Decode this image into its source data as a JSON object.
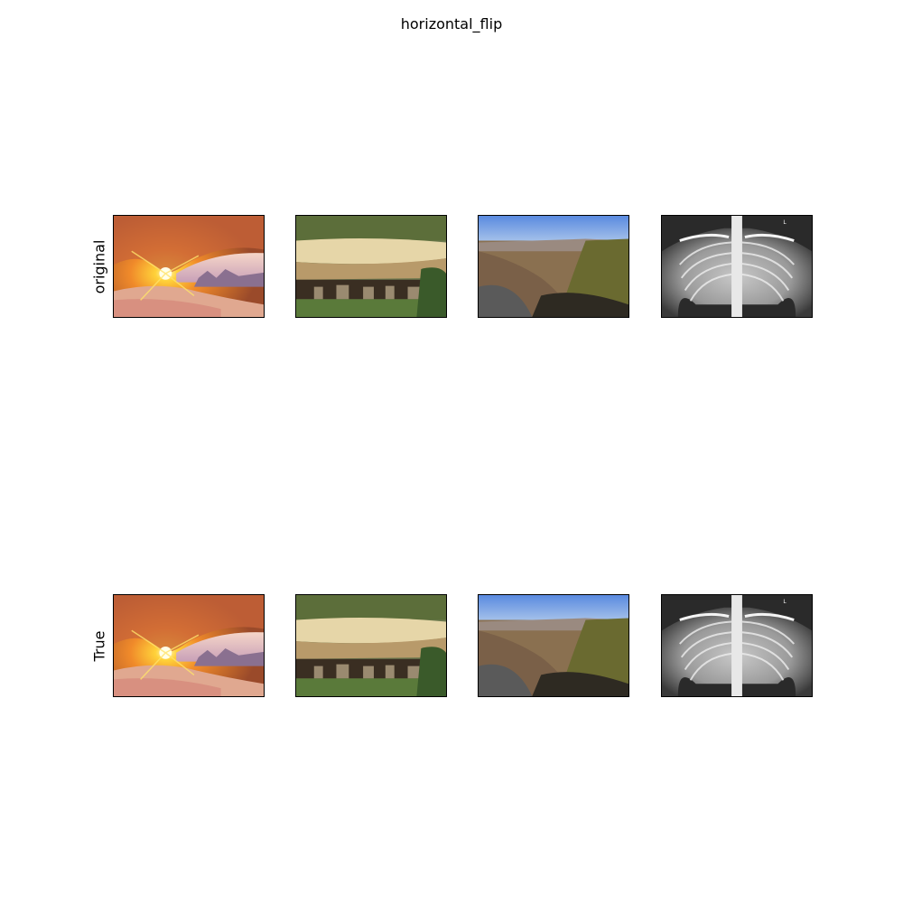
{
  "figure": {
    "title": "horizontal_flip"
  },
  "rows": [
    {
      "label": "original",
      "images": [
        {
          "subject": "sunrise-through-rock-arch"
        },
        {
          "subject": "cliff-dwelling-ruins"
        },
        {
          "subject": "desert-canyon-valley"
        },
        {
          "subject": "chest-x-ray"
        }
      ]
    },
    {
      "label": "True",
      "images": [
        {
          "subject": "sunrise-through-rock-arch"
        },
        {
          "subject": "cliff-dwelling-ruins"
        },
        {
          "subject": "desert-canyon-valley"
        },
        {
          "subject": "chest-x-ray"
        }
      ]
    }
  ],
  "xray_marker": "L"
}
